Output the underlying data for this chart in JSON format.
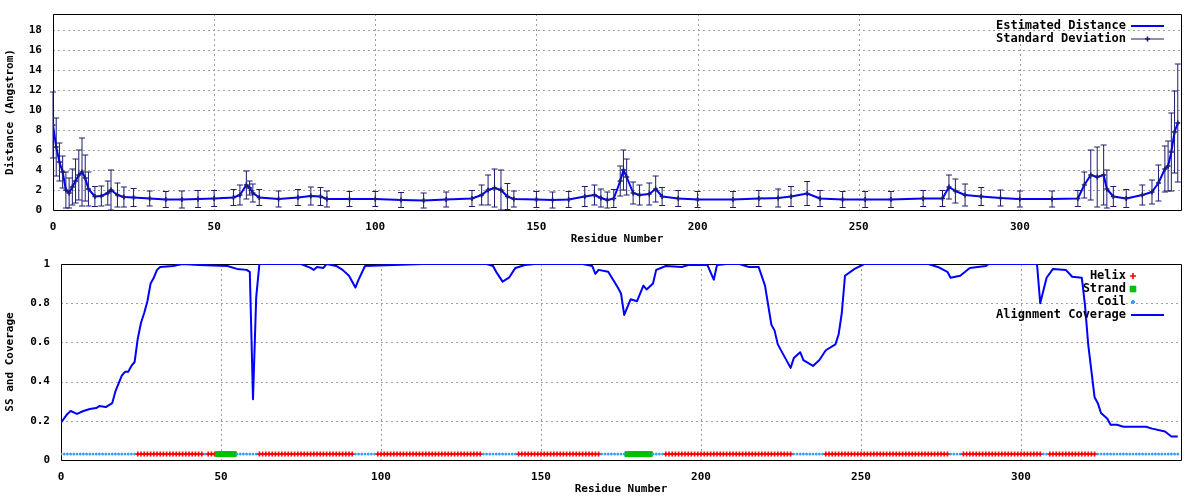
{
  "chart_data": [
    {
      "type": "line",
      "xlabel": "Residue Number",
      "ylabel": "Distance (Angstrom)",
      "x": [
        0,
        1,
        2,
        3,
        4,
        5,
        6,
        7,
        8,
        9,
        10,
        11,
        13,
        15,
        17,
        18,
        20,
        22,
        25,
        30,
        35,
        40,
        45,
        50,
        56,
        58,
        60,
        61,
        62,
        64,
        70,
        76,
        80,
        83,
        85,
        92,
        100,
        108,
        115,
        122,
        130,
        133,
        135,
        137,
        139,
        141,
        143,
        150,
        155,
        160,
        165,
        168,
        170,
        172,
        174,
        176,
        177,
        178,
        180,
        182,
        185,
        187,
        189,
        194,
        200,
        211,
        219,
        225,
        229,
        234,
        238,
        245,
        252,
        260,
        270,
        276,
        278,
        280,
        283,
        288,
        294,
        300,
        310,
        318,
        320,
        322,
        324,
        326,
        327,
        329,
        333,
        338,
        341,
        343,
        345,
        346,
        347,
        348,
        349
      ],
      "series": [
        {
          "name": "Estimated Distance",
          "color": "#0000ff",
          "values": [
            8.5,
            6.3,
            4.8,
            3.8,
            2.0,
            1.7,
            2.3,
            2.9,
            3.5,
            3.8,
            3.2,
            2.1,
            1.35,
            1.4,
            1.7,
            2.0,
            1.5,
            1.3,
            1.25,
            1.15,
            1.05,
            1.05,
            1.1,
            1.15,
            1.25,
            1.5,
            2.5,
            2.2,
            1.7,
            1.25,
            1.1,
            1.25,
            1.4,
            1.35,
            1.1,
            1.1,
            1.1,
            1.0,
            0.95,
            1.05,
            1.15,
            1.5,
            2.0,
            2.2,
            2.0,
            1.35,
            1.1,
            1.05,
            1.0,
            1.05,
            1.35,
            1.5,
            1.2,
            1.0,
            1.15,
            2.9,
            4.0,
            3.3,
            1.7,
            1.5,
            1.6,
            2.1,
            1.35,
            1.15,
            1.05,
            1.05,
            1.15,
            1.2,
            1.35,
            1.65,
            1.15,
            1.05,
            1.05,
            1.05,
            1.15,
            1.15,
            2.3,
            1.9,
            1.5,
            1.35,
            1.2,
            1.1,
            1.1,
            1.15,
            2.5,
            3.5,
            3.3,
            3.5,
            2.1,
            1.35,
            1.15,
            1.5,
            1.8,
            2.7,
            4.1,
            4.4,
            5.8,
            7.8,
            8.7
          ]
        },
        {
          "name": "Standard Deviation",
          "type": "scatter",
          "color": "#1c1c70",
          "marker": "cross",
          "values": [
            8.5,
            6.3,
            4.8,
            3.8,
            2.0,
            1.7,
            2.3,
            2.9,
            3.5,
            3.8,
            3.2,
            2.1,
            1.35,
            1.4,
            1.7,
            2.0,
            1.5,
            1.3,
            1.25,
            1.15,
            1.05,
            1.05,
            1.1,
            1.15,
            1.25,
            1.5,
            2.5,
            2.2,
            1.7,
            1.25,
            1.1,
            1.25,
            1.4,
            1.35,
            1.1,
            1.1,
            1.1,
            1.0,
            0.95,
            1.05,
            1.15,
            1.5,
            2.0,
            2.2,
            2.0,
            1.35,
            1.1,
            1.05,
            1.0,
            1.05,
            1.35,
            1.5,
            1.2,
            1.0,
            1.15,
            2.9,
            4.0,
            3.3,
            1.7,
            1.5,
            1.6,
            2.1,
            1.35,
            1.15,
            1.05,
            1.05,
            1.15,
            1.2,
            1.35,
            1.65,
            1.15,
            1.05,
            1.05,
            1.05,
            1.15,
            1.15,
            2.3,
            1.9,
            1.5,
            1.35,
            1.2,
            1.1,
            1.1,
            1.15,
            2.5,
            3.5,
            3.3,
            3.5,
            2.1,
            1.35,
            1.15,
            1.5,
            1.8,
            2.7,
            4.1,
            4.4,
            5.8,
            7.8,
            8.7
          ],
          "errors": [
            3.3,
            2.9,
            1.9,
            1.6,
            1.8,
            1.5,
            1.8,
            2.2,
            2.5,
            3.4,
            2.3,
            1.7,
            1.0,
            1.0,
            1.2,
            2.0,
            1.2,
            1.0,
            0.9,
            0.75,
            0.8,
            0.85,
            0.85,
            0.8,
            0.8,
            1.0,
            1.4,
            0.7,
            0.9,
            0.8,
            0.8,
            0.8,
            0.9,
            0.9,
            0.8,
            0.75,
            0.75,
            0.75,
            0.75,
            0.75,
            0.8,
            1.0,
            1.5,
            1.9,
            2.0,
            1.3,
            0.8,
            0.8,
            0.8,
            0.8,
            1.0,
            1.0,
            0.9,
            0.8,
            0.9,
            1.5,
            2.0,
            1.8,
            1.1,
            1.0,
            1.1,
            1.3,
            0.9,
            0.8,
            0.8,
            0.8,
            0.8,
            0.9,
            1.0,
            1.2,
            0.8,
            0.8,
            0.8,
            0.8,
            0.8,
            0.8,
            1.2,
            1.2,
            1.1,
            0.9,
            0.8,
            0.8,
            0.8,
            0.8,
            1.3,
            2.5,
            3.0,
            3.0,
            1.9,
            1.0,
            0.9,
            1.0,
            1.2,
            1.8,
            2.3,
            2.5,
            3.9,
            4.1,
            5.9
          ]
        }
      ],
      "xlim": [
        0,
        350
      ],
      "ylim": [
        0,
        19.6
      ],
      "xticks": [
        0,
        50,
        100,
        150,
        200,
        250,
        300
      ],
      "yticks": [
        0,
        2,
        4,
        6,
        8,
        10,
        12,
        14,
        16,
        18
      ],
      "grid": true,
      "legend": "top right",
      "marker": "none"
    },
    {
      "type": "scatter",
      "xlabel": "Residue Number",
      "ylabel": "SS and Coverage",
      "series": [
        {
          "name": "Helix",
          "color": "#ff0000",
          "marker": "cross",
          "x": [
            24,
            25,
            26,
            27,
            28,
            29,
            30,
            31,
            32,
            33,
            34,
            35,
            36,
            37,
            38,
            39,
            40,
            41,
            42,
            43,
            44,
            46,
            47,
            48,
            62,
            63,
            64,
            65,
            66,
            67,
            68,
            69,
            70,
            71,
            72,
            73,
            74,
            75,
            76,
            77,
            78,
            79,
            80,
            81,
            82,
            83,
            84,
            85,
            86,
            87,
            88,
            89,
            90,
            91,
            99,
            100,
            101,
            102,
            103,
            104,
            105,
            106,
            107,
            108,
            109,
            110,
            111,
            112,
            113,
            114,
            115,
            116,
            117,
            118,
            119,
            120,
            121,
            122,
            123,
            124,
            125,
            126,
            127,
            128,
            129,
            130,
            131,
            143,
            144,
            145,
            146,
            147,
            148,
            149,
            150,
            151,
            152,
            153,
            154,
            155,
            156,
            157,
            158,
            159,
            160,
            161,
            162,
            163,
            164,
            165,
            166,
            167,
            168,
            189,
            190,
            191,
            192,
            193,
            194,
            195,
            196,
            197,
            198,
            199,
            200,
            201,
            202,
            203,
            204,
            205,
            206,
            207,
            208,
            209,
            210,
            211,
            212,
            213,
            214,
            215,
            216,
            217,
            218,
            219,
            220,
            221,
            222,
            223,
            224,
            225,
            226,
            227,
            228,
            239,
            240,
            241,
            242,
            243,
            244,
            245,
            246,
            247,
            248,
            249,
            250,
            251,
            252,
            253,
            254,
            255,
            256,
            257,
            258,
            259,
            260,
            261,
            262,
            263,
            264,
            265,
            266,
            267,
            268,
            269,
            270,
            271,
            272,
            273,
            274,
            275,
            276,
            277,
            282,
            283,
            284,
            285,
            286,
            287,
            288,
            289,
            290,
            291,
            292,
            293,
            294,
            295,
            296,
            297,
            298,
            299,
            300,
            301,
            302,
            303,
            304,
            305,
            306,
            309,
            310,
            311,
            312,
            313,
            314,
            315,
            316,
            317,
            318,
            319,
            320,
            321,
            322,
            323
          ],
          "values": [
            0.03,
            0.03,
            0.03,
            0.03,
            0.03,
            0.03,
            0.03,
            0.03,
            0.03,
            0.03,
            0.03,
            0.03,
            0.03,
            0.03,
            0.03,
            0.03,
            0.03,
            0.03,
            0.03,
            0.03,
            0.03,
            0.03,
            0.03,
            0.03,
            0.03,
            0.03,
            0.03,
            0.03,
            0.03,
            0.03,
            0.03,
            0.03,
            0.03,
            0.03,
            0.03,
            0.03,
            0.03,
            0.03,
            0.03,
            0.03,
            0.03,
            0.03,
            0.03,
            0.03,
            0.03,
            0.03,
            0.03,
            0.03,
            0.03,
            0.03,
            0.03,
            0.03,
            0.03,
            0.03,
            0.03,
            0.03,
            0.03,
            0.03,
            0.03,
            0.03,
            0.03,
            0.03,
            0.03,
            0.03,
            0.03,
            0.03,
            0.03,
            0.03,
            0.03,
            0.03,
            0.03,
            0.03,
            0.03,
            0.03,
            0.03,
            0.03,
            0.03,
            0.03,
            0.03,
            0.03,
            0.03,
            0.03,
            0.03,
            0.03,
            0.03,
            0.03,
            0.03,
            0.03,
            0.03,
            0.03,
            0.03,
            0.03,
            0.03,
            0.03,
            0.03,
            0.03,
            0.03,
            0.03,
            0.03,
            0.03,
            0.03,
            0.03,
            0.03,
            0.03,
            0.03,
            0.03,
            0.03,
            0.03,
            0.03,
            0.03,
            0.03,
            0.03,
            0.03,
            0.03,
            0.03,
            0.03,
            0.03,
            0.03,
            0.03,
            0.03,
            0.03,
            0.03,
            0.03,
            0.03,
            0.03,
            0.03,
            0.03,
            0.03,
            0.03,
            0.03,
            0.03,
            0.03,
            0.03,
            0.03,
            0.03,
            0.03,
            0.03,
            0.03,
            0.03,
            0.03,
            0.03,
            0.03,
            0.03,
            0.03,
            0.03,
            0.03,
            0.03,
            0.03,
            0.03,
            0.03,
            0.03,
            0.03,
            0.03,
            0.03,
            0.03,
            0.03,
            0.03,
            0.03,
            0.03,
            0.03,
            0.03,
            0.03,
            0.03,
            0.03,
            0.03,
            0.03,
            0.03,
            0.03,
            0.03,
            0.03,
            0.03,
            0.03,
            0.03,
            0.03,
            0.03,
            0.03,
            0.03,
            0.03,
            0.03,
            0.03,
            0.03,
            0.03,
            0.03,
            0.03,
            0.03,
            0.03,
            0.03,
            0.03,
            0.03,
            0.03,
            0.03,
            0.03,
            0.03,
            0.03,
            0.03,
            0.03,
            0.03,
            0.03,
            0.03,
            0.03,
            0.03,
            0.03,
            0.03,
            0.03,
            0.03,
            0.03,
            0.03,
            0.03,
            0.03,
            0.03,
            0.03,
            0.03,
            0.03,
            0.03,
            0.03,
            0.03,
            0.03,
            0.03,
            0.03,
            0.03,
            0.03,
            0.03,
            0.03,
            0.03,
            0.03,
            0.03,
            0.03,
            0.03,
            0.03,
            0.03,
            0.03,
            0.03
          ]
        },
        {
          "name": "Strand",
          "color": "#00c000",
          "marker": "square",
          "x": [
            49,
            50,
            51,
            52,
            53,
            54,
            177,
            178,
            179,
            180,
            181,
            182,
            183,
            184
          ],
          "values": [
            0.03,
            0.03,
            0.03,
            0.03,
            0.03,
            0.03,
            0.03,
            0.03,
            0.03,
            0.03,
            0.03,
            0.03,
            0.03,
            0.03
          ]
        },
        {
          "name": "Coil",
          "color": "#3399ff",
          "marker": "circle",
          "x": [
            0,
            1,
            2,
            3,
            4,
            5,
            6,
            7,
            8,
            9,
            10,
            11,
            12,
            13,
            14,
            15,
            16,
            17,
            18,
            19,
            20,
            21,
            22,
            23,
            45,
            55,
            56,
            57,
            58,
            59,
            60,
            61,
            92,
            93,
            94,
            95,
            96,
            97,
            98,
            132,
            133,
            134,
            135,
            136,
            137,
            138,
            139,
            140,
            141,
            142,
            169,
            170,
            171,
            172,
            173,
            174,
            175,
            176,
            185,
            186,
            187,
            188,
            229,
            230,
            231,
            232,
            233,
            234,
            235,
            236,
            237,
            238,
            278,
            279,
            280,
            281,
            307,
            308,
            324,
            325,
            326,
            327,
            328,
            329,
            330,
            331,
            332,
            333,
            334,
            335,
            336,
            337,
            338,
            339,
            340,
            341,
            342,
            343,
            344,
            345,
            346,
            347,
            348,
            349
          ],
          "values": [
            0.03,
            0.03,
            0.03,
            0.03,
            0.03,
            0.03,
            0.03,
            0.03,
            0.03,
            0.03,
            0.03,
            0.03,
            0.03,
            0.03,
            0.03,
            0.03,
            0.03,
            0.03,
            0.03,
            0.03,
            0.03,
            0.03,
            0.03,
            0.03,
            0.03,
            0.03,
            0.03,
            0.03,
            0.03,
            0.03,
            0.03,
            0.03,
            0.03,
            0.03,
            0.03,
            0.03,
            0.03,
            0.03,
            0.03,
            0.03,
            0.03,
            0.03,
            0.03,
            0.03,
            0.03,
            0.03,
            0.03,
            0.03,
            0.03,
            0.03,
            0.03,
            0.03,
            0.03,
            0.03,
            0.03,
            0.03,
            0.03,
            0.03,
            0.03,
            0.03,
            0.03,
            0.03,
            0.03,
            0.03,
            0.03,
            0.03,
            0.03,
            0.03,
            0.03,
            0.03,
            0.03,
            0.03,
            0.03,
            0.03,
            0.03,
            0.03,
            0.03,
            0.03,
            0.03,
            0.03,
            0.03,
            0.03,
            0.03,
            0.03,
            0.03,
            0.03,
            0.03,
            0.03,
            0.03,
            0.03,
            0.03,
            0.03,
            0.03,
            0.03,
            0.03,
            0.03,
            0.03,
            0.03,
            0.03,
            0.03,
            0.03,
            0.03,
            0.03,
            0.03
          ]
        },
        {
          "name": "Alignment Coverage",
          "type": "line",
          "color": "#0000ff",
          "x": [
            0,
            2,
            3,
            5,
            7,
            9,
            11,
            12,
            14,
            16,
            17,
            19,
            20,
            21,
            22,
            23,
            24,
            25,
            26,
            27,
            28,
            29,
            30,
            31,
            35,
            38,
            43,
            52,
            55,
            58,
            59,
            60,
            61,
            62,
            75,
            78,
            79,
            80,
            82,
            83,
            86,
            88,
            90,
            92,
            93,
            95,
            104,
            113,
            133,
            135,
            136,
            138,
            140,
            142,
            145,
            148,
            163,
            166,
            167,
            168,
            171,
            174,
            175,
            176,
            178,
            180,
            182,
            183,
            185,
            186,
            189,
            194,
            196,
            202,
            204,
            205,
            208,
            212,
            215,
            218,
            220,
            222,
            223,
            224,
            226,
            228,
            229,
            231,
            232,
            235,
            237,
            239,
            242,
            243,
            244,
            245,
            248,
            251,
            271,
            274,
            277,
            278,
            281,
            284,
            289,
            290,
            305,
            306,
            308,
            310,
            314,
            316,
            319,
            320,
            321,
            323,
            324,
            325,
            327,
            328,
            330,
            332,
            337,
            339,
            341,
            345,
            347,
            349
          ],
          "values": [
            0.19,
            0.235,
            0.25,
            0.235,
            0.25,
            0.26,
            0.265,
            0.275,
            0.27,
            0.29,
            0.35,
            0.43,
            0.45,
            0.45,
            0.48,
            0.5,
            0.62,
            0.7,
            0.75,
            0.81,
            0.9,
            0.93,
            0.97,
            0.985,
            0.99,
            1,
            0.995,
            0.99,
            0.975,
            0.97,
            0.96,
            0.31,
            0.83,
            1,
            1,
            0.98,
            0.97,
            0.985,
            0.98,
            1,
            0.99,
            0.97,
            0.94,
            0.88,
            0.92,
            0.99,
            0.995,
            1,
            1,
            0.99,
            0.96,
            0.91,
            0.93,
            0.98,
            0.995,
            1,
            1,
            0.99,
            0.95,
            0.97,
            0.96,
            0.88,
            0.85,
            0.74,
            0.82,
            0.81,
            0.89,
            0.87,
            0.9,
            0.97,
            0.99,
            0.985,
            0.995,
            0.995,
            0.92,
            0.995,
            1,
            1,
            0.985,
            0.985,
            0.89,
            0.69,
            0.66,
            0.59,
            0.53,
            0.47,
            0.52,
            0.55,
            0.51,
            0.48,
            0.51,
            0.56,
            0.59,
            0.64,
            0.75,
            0.94,
            0.975,
            1,
            1,
            0.985,
            0.96,
            0.93,
            0.94,
            0.98,
            0.99,
            1,
            1,
            0.8,
            0.93,
            0.975,
            0.97,
            0.935,
            0.93,
            0.79,
            0.59,
            0.32,
            0.29,
            0.24,
            0.21,
            0.18,
            0.18,
            0.17,
            0.17,
            0.17,
            0.16,
            0.145,
            0.12,
            0.12
          ]
        }
      ],
      "xlim": [
        0,
        350
      ],
      "ylim": [
        0,
        1
      ],
      "xticks": [
        0,
        50,
        100,
        150,
        200,
        250,
        300
      ],
      "yticks": [
        0,
        0.2,
        0.4,
        0.6,
        0.8,
        1
      ],
      "grid": true,
      "legend": "top right"
    }
  ]
}
